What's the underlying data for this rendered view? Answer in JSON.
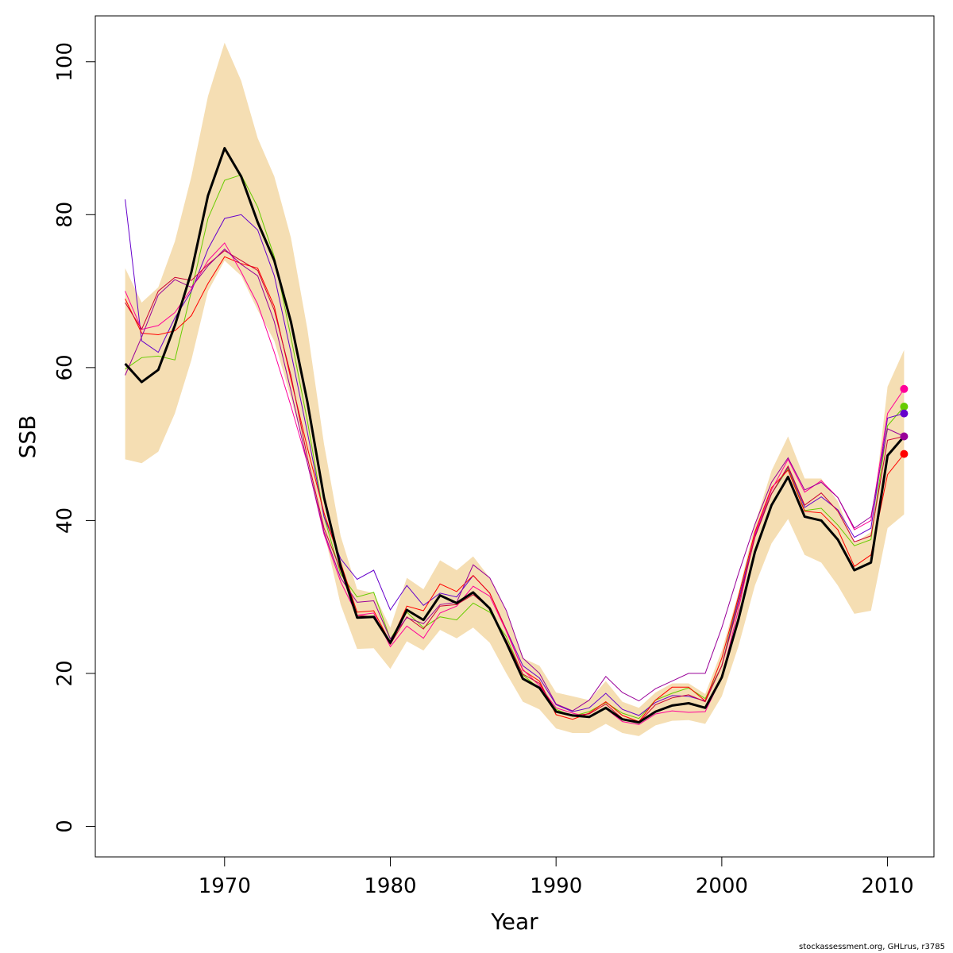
{
  "chart_data": {
    "type": "line",
    "xlabel": "Year",
    "ylabel": "SSB",
    "xlim": [
      1962.2,
      2012.8
    ],
    "ylim": [
      -4,
      106
    ],
    "x_ticks": [
      1970,
      1980,
      1990,
      2000,
      2010
    ],
    "y_ticks": [
      0,
      20,
      40,
      60,
      80,
      100
    ],
    "band_color": "#f5deb3",
    "main_color": "#000000",
    "years": [
      1964,
      1965,
      1966,
      1967,
      1968,
      1969,
      1970,
      1971,
      1972,
      1973,
      1974,
      1975,
      1976,
      1977,
      1978,
      1979,
      1980,
      1981,
      1982,
      1983,
      1984,
      1985,
      1986,
      1987,
      1988,
      1989,
      1990,
      1991,
      1992,
      1993,
      1994,
      1995,
      1996,
      1997,
      1998,
      1999,
      2000,
      2001,
      2002,
      2003,
      2004,
      2005,
      2006,
      2007,
      2008,
      2009,
      2010,
      2011
    ],
    "band_upper": [
      73,
      68.5,
      70.5,
      76.5,
      85,
      95.5,
      102.5,
      97.5,
      90,
      85,
      77,
      65,
      50,
      38,
      31,
      30.5,
      26,
      32.5,
      31,
      34.8,
      33.5,
      35.3,
      32.5,
      28,
      22,
      21,
      17.5,
      17,
      16.5,
      19,
      16.3,
      15.5,
      17.5,
      18.7,
      18.7,
      17.3,
      23,
      30.5,
      39.5,
      46.5,
      51,
      45.5,
      45.5,
      42.5,
      37,
      38.5,
      57.5,
      62.3
    ],
    "band_lower": [
      48,
      47.5,
      49,
      54,
      61,
      70,
      74,
      72,
      67.5,
      63.5,
      56,
      48,
      38.5,
      29,
      23.2,
      23.3,
      20.6,
      24.2,
      23,
      25.7,
      24.6,
      26,
      24,
      20,
      16.3,
      15.3,
      12.8,
      12.2,
      12.2,
      13.4,
      12.2,
      11.8,
      13.2,
      13.8,
      13.9,
      13.4,
      17,
      23.5,
      31.5,
      37,
      40.2,
      35.5,
      34.5,
      31.5,
      27.8,
      28.2,
      39,
      40.8
    ],
    "main": [
      60.5,
      58.1,
      59.7,
      65.5,
      72.5,
      82.5,
      88.7,
      85,
      79,
      74,
      66,
      55.5,
      43,
      34,
      27.3,
      27.4,
      24,
      28.3,
      27,
      30.2,
      29.2,
      30.6,
      28.5,
      24,
      19.3,
      18.1,
      15,
      14.5,
      14.3,
      15.5,
      14,
      13.6,
      15,
      15.8,
      16.1,
      15.5,
      19.5,
      27,
      35.9,
      42,
      45.7,
      40.5,
      40,
      37.5,
      33.5,
      34.5,
      48.5,
      51
    ],
    "series": [
      {
        "color": "#66cc00",
        "values": [
          59.8,
          61.3,
          61.5,
          61,
          70,
          79.5,
          84.5,
          85.2,
          81,
          74.5,
          64,
          53,
          40.5,
          33,
          30,
          30.6,
          24.5,
          28,
          26,
          27.4,
          27,
          29.2,
          28,
          24.8,
          19.8,
          18,
          15.3,
          14.4,
          15,
          16.2,
          14.8,
          14.1,
          16.5,
          17.4,
          18.1,
          16.7,
          21,
          30,
          38.5,
          43.5,
          46.8,
          41.3,
          41.6,
          39.4,
          36.7,
          37.5,
          52.4,
          54.9
        ],
        "end_marker": true
      },
      {
        "color": "#6600cc",
        "values": [
          82,
          63.5,
          62,
          66.5,
          70,
          75.5,
          79.5,
          80,
          78,
          72,
          62,
          51.5,
          40.5,
          35,
          32.3,
          33.5,
          28.3,
          31.5,
          28.9,
          30.5,
          30,
          32.8,
          30.5,
          25.7,
          21,
          19.4,
          15.9,
          15,
          15.5,
          17.4,
          15.3,
          14.5,
          16.2,
          17.1,
          17,
          16.4,
          21,
          29.5,
          38,
          43.5,
          47,
          41.7,
          43.1,
          41.4,
          37.8,
          39,
          53.4,
          54
        ],
        "end_marker": true
      },
      {
        "color": "#ff0000",
        "values": [
          69,
          64.5,
          64.3,
          64.8,
          66.8,
          71,
          74.5,
          73.6,
          73,
          68,
          58.5,
          49.5,
          41,
          34.5,
          28,
          28.2,
          24,
          28.8,
          28.2,
          31.7,
          30.7,
          32.8,
          30.5,
          25.6,
          20.4,
          19,
          14.6,
          14,
          14.8,
          16.3,
          14.5,
          13.7,
          16.5,
          18.2,
          18.2,
          16.4,
          22,
          30,
          38.5,
          44.3,
          46.6,
          41.2,
          41,
          38.8,
          34,
          35.5,
          46,
          48.7
        ],
        "end_marker": true
      },
      {
        "color": "#ff0099",
        "values": [
          70,
          65,
          65.5,
          67.2,
          70.3,
          74,
          76.3,
          72.5,
          68.3,
          62,
          55,
          47.5,
          38.2,
          32,
          27.6,
          27.9,
          23.5,
          26.2,
          24.6,
          27.9,
          28.8,
          31.4,
          30.1,
          25.5,
          20.5,
          18.4,
          15.5,
          14.8,
          14.3,
          15.4,
          13.7,
          13.3,
          14.7,
          15.1,
          14.9,
          15,
          19.5,
          28.3,
          38.2,
          44,
          48,
          43.7,
          45.2,
          43,
          38.8,
          40,
          54,
          57.2
        ],
        "end_marker": true
      },
      {
        "color": "#cc0033",
        "values": [
          68.5,
          65,
          70,
          71.8,
          71.4,
          73.5,
          75.3,
          74,
          72.7,
          67.5,
          59,
          48.2,
          39,
          33.5,
          27.6,
          27.4,
          23.8,
          27.4,
          25.8,
          28.8,
          29,
          30.3,
          28.5,
          24.3,
          19.9,
          18.7,
          15.1,
          14.5,
          14.7,
          16,
          14.1,
          13.6,
          15.9,
          16.8,
          17.2,
          16.3,
          21,
          29,
          37.8,
          43.5,
          47.1,
          42,
          43.6,
          41.2,
          37.2,
          38,
          50.5,
          51
        ],
        "end_marker": false
      },
      {
        "color": "#990099",
        "values": [
          59,
          64,
          69.5,
          71.5,
          70.5,
          73.3,
          75.5,
          73.5,
          72,
          66,
          57,
          47.5,
          38.5,
          32.5,
          29.3,
          29.5,
          24.5,
          27.3,
          26.5,
          29,
          29.3,
          34.2,
          32.5,
          28.2,
          22,
          20,
          16,
          15.1,
          16.5,
          19.6,
          17.5,
          16.4,
          18,
          19,
          20,
          20,
          26,
          33,
          39.5,
          45,
          48.2,
          44,
          45,
          43,
          39,
          40.5,
          52,
          51
        ],
        "end_marker": true
      }
    ]
  },
  "footer_text": "stockassessment.org, GHLrus, r3785"
}
